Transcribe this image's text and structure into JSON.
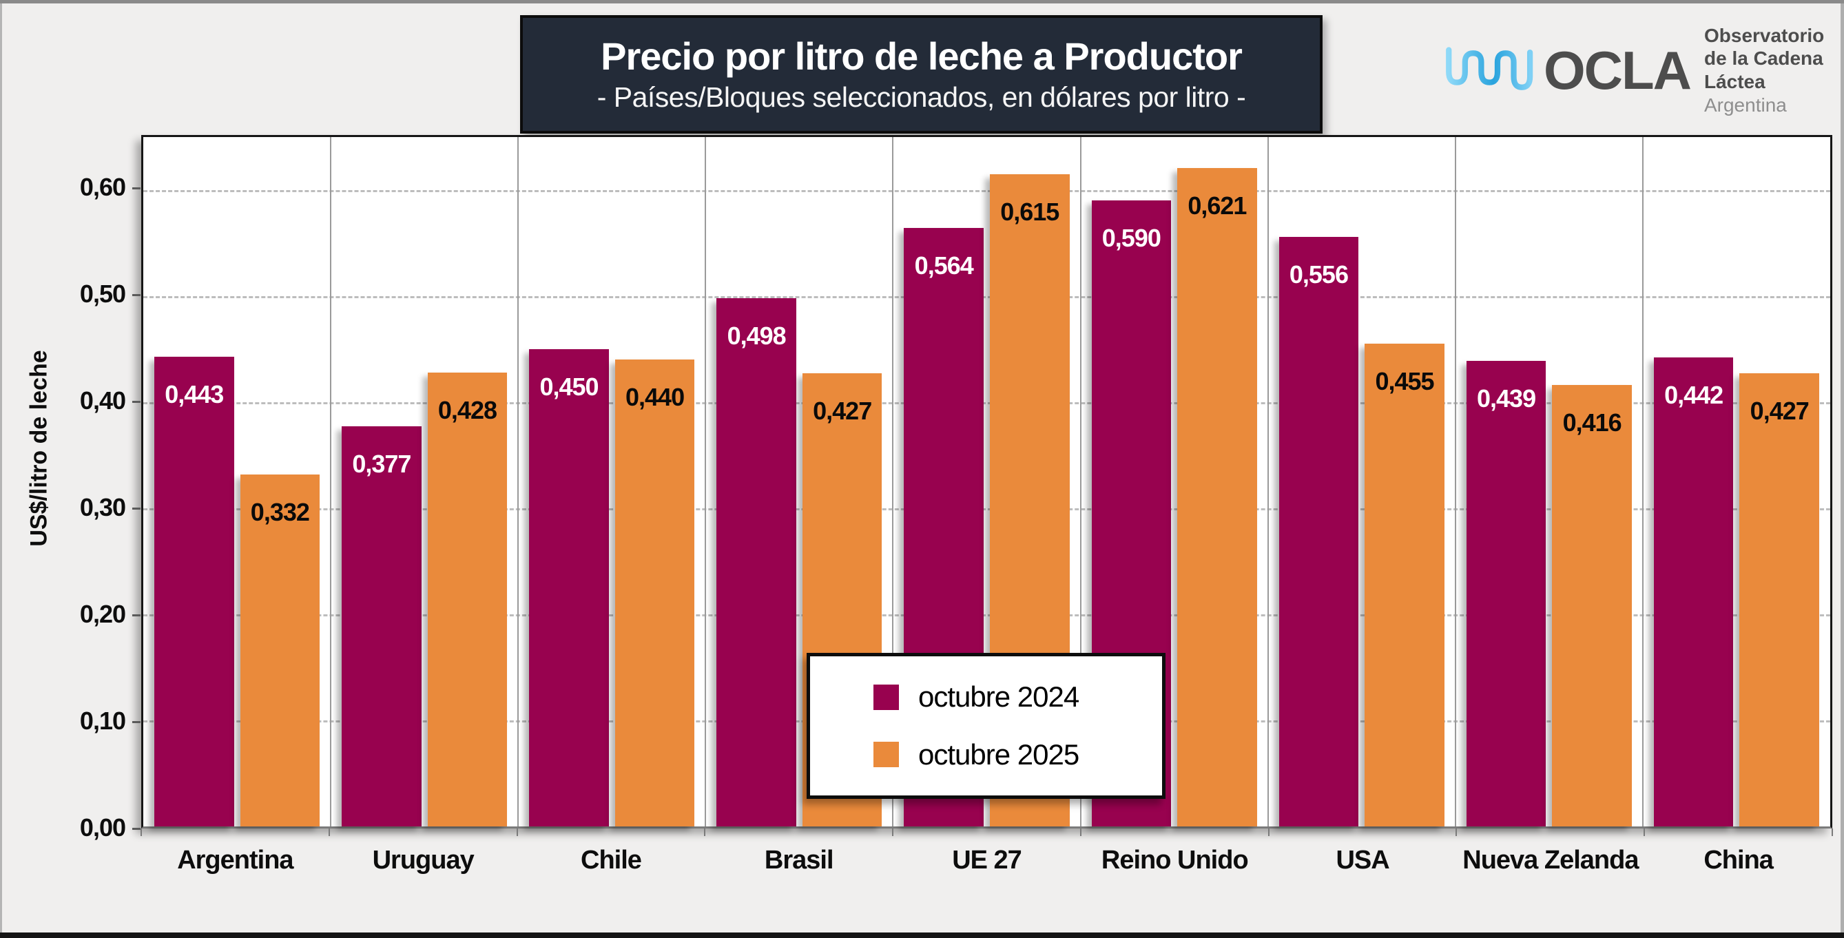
{
  "header": {
    "title": "Precio por litro de leche a Productor",
    "subtitle": "- Países/Bloques seleccionados, en dólares por litro -",
    "box_color": "#232b38"
  },
  "logo": {
    "wave_icon": "milk-wave-icon",
    "acronym": "OCLA",
    "line1": "Observatorio",
    "line2": "de la Cadena Láctea",
    "line3": "Argentina",
    "wave_color_light": "#8ed9f8",
    "wave_color_dark": "#29a3dd"
  },
  "chart_data": {
    "type": "bar",
    "title": "Precio por litro de leche a Productor",
    "subtitle": "- Países/Bloques seleccionados, en dólares por litro -",
    "ylabel": "US$/litro de leche",
    "ylim": [
      0,
      0.65
    ],
    "grid": "horizontal-dashed, vertical category separators",
    "legend_position": "inside-bottom-center",
    "yticks": [
      {
        "value": 0.0,
        "label": "0,00"
      },
      {
        "value": 0.1,
        "label": "0,10"
      },
      {
        "value": 0.2,
        "label": "0,20"
      },
      {
        "value": 0.3,
        "label": "0,30"
      },
      {
        "value": 0.4,
        "label": "0,40"
      },
      {
        "value": 0.5,
        "label": "0,50"
      },
      {
        "value": 0.6,
        "label": "0,60"
      }
    ],
    "categories": [
      "Argentina",
      "Uruguay",
      "Chile",
      "Brasil",
      "UE 27",
      "Reino Unido",
      "USA",
      "Nueva Zelanda",
      "China"
    ],
    "series": [
      {
        "name": "octubre 2024",
        "color": "#98024F",
        "label_color": "#ffffff",
        "values": [
          0.443,
          0.377,
          0.45,
          0.498,
          0.564,
          0.59,
          0.556,
          0.439,
          0.442
        ],
        "labels": [
          "0,443",
          "0,377",
          "0,450",
          "0,498",
          "0,564",
          "0,590",
          "0,556",
          "0,439",
          "0,442"
        ]
      },
      {
        "name": "octubre 2025",
        "color": "#EA8A3B",
        "label_color": "#0a0a0a",
        "values": [
          0.332,
          0.428,
          0.44,
          0.427,
          0.615,
          0.621,
          0.455,
          0.416,
          0.427
        ],
        "labels": [
          "0,332",
          "0,428",
          "0,440",
          "0,427",
          "0,615",
          "0,621",
          "0,455",
          "0,416",
          "0,427"
        ]
      }
    ]
  }
}
